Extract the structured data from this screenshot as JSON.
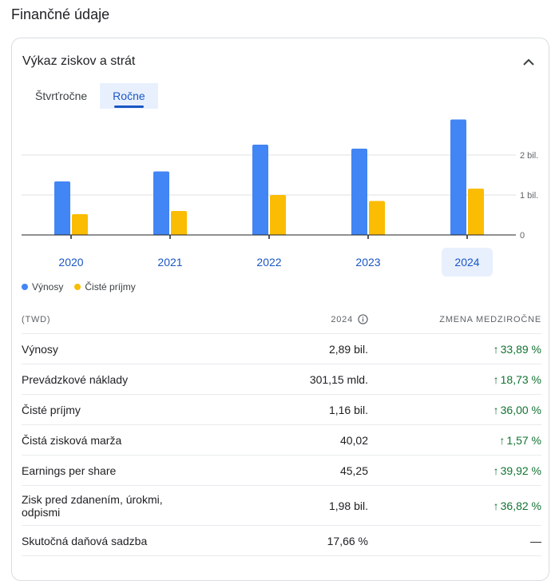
{
  "section_title": "Finančné údaje",
  "card": {
    "title": "Výkaz ziskov a strát",
    "collapse_icon": "chevron-up-icon"
  },
  "tabs": [
    {
      "label": "Štvrťročne",
      "active": false
    },
    {
      "label": "Ročne",
      "active": true
    }
  ],
  "chart_data": {
    "type": "bar",
    "categories": [
      "2020",
      "2021",
      "2022",
      "2023",
      "2024"
    ],
    "selected_category": "2024",
    "series": [
      {
        "name": "Výnosy",
        "color": "#4285f4",
        "values": [
          1.34,
          1.59,
          2.26,
          2.16,
          2.89
        ]
      },
      {
        "name": "Čisté príjmy",
        "color": "#fbbc04",
        "values": [
          0.52,
          0.6,
          1.0,
          0.85,
          1.16
        ]
      }
    ],
    "y_ticks": [
      {
        "value": 0,
        "label": "0"
      },
      {
        "value": 1,
        "label": "1 bil."
      },
      {
        "value": 2,
        "label": "2 bil."
      }
    ],
    "ylim": [
      0,
      3.1
    ],
    "grid": true,
    "legend_position": "bottom-left"
  },
  "table": {
    "header": {
      "name": "(TWD)",
      "value": "2024",
      "change": "ZMENA MEDZIROČNE",
      "info_icon": "info-icon"
    },
    "rows": [
      {
        "name": "Výnosy",
        "value": "2,89 bil.",
        "change": "33,89 %",
        "arrow": "↑"
      },
      {
        "name": "Prevádzkové náklady",
        "value": "301,15 mld.",
        "change": "18,73 %",
        "arrow": "↑"
      },
      {
        "name": "Čisté príjmy",
        "value": "1,16 bil.",
        "change": "36,00 %",
        "arrow": "↑"
      },
      {
        "name": "Čistá zisková marža",
        "value": "40,02",
        "change": "1,57 %",
        "arrow": "↑"
      },
      {
        "name": "Earnings per share",
        "value": "45,25",
        "change": "39,92 %",
        "arrow": "↑"
      },
      {
        "name": "Zisk pred zdanením, úrokmi, odpismi",
        "value": "1,98 bil.",
        "change": "36,82 %",
        "arrow": "↑"
      },
      {
        "name": "Skutočná daňová sadzba",
        "value": "17,66 %",
        "change": "—",
        "arrow": ""
      }
    ]
  }
}
